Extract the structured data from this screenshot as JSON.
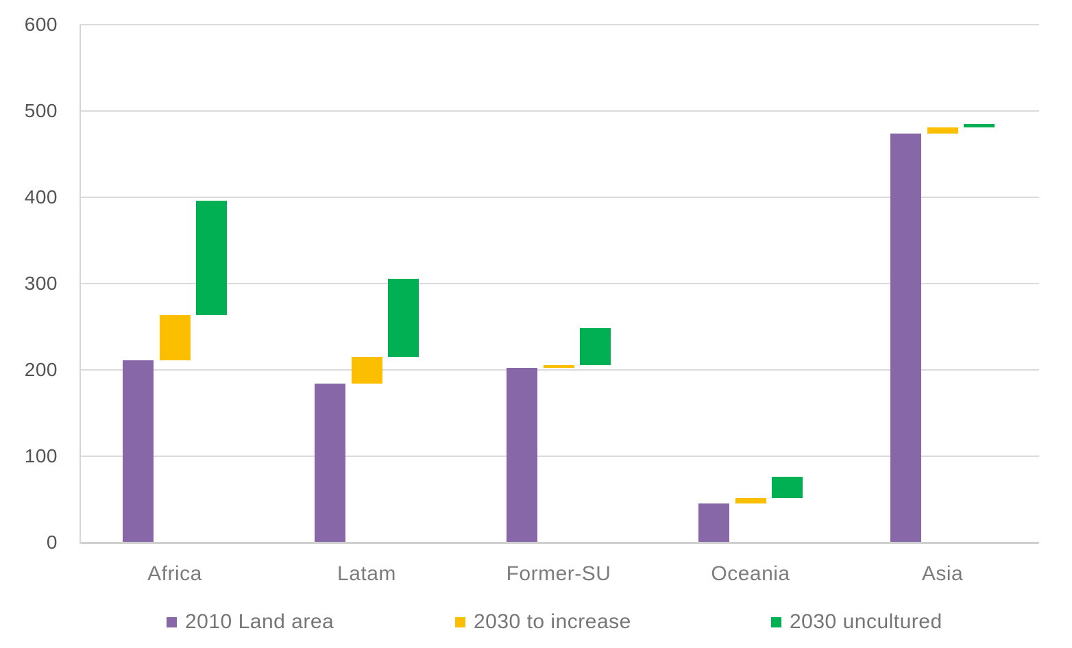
{
  "page": {
    "background_color": "#ffffff",
    "gridline_color": "#dbdbdb",
    "axis_line_color": "#d6d6d6",
    "zero_axis_color": "#cfcfcf",
    "tick_text_color": "#545454",
    "category_text_color": "#7c7c7c",
    "legend_text_color": "#767676"
  },
  "chart_data": {
    "type": "bar",
    "subtype": "floating-range-columns (waterfall-like, value ranges per segment)",
    "title": "",
    "xlabel": "",
    "ylabel": "",
    "categories": [
      "Africa",
      "Latam",
      "Former-SU",
      "Oceania",
      "Asia"
    ],
    "series": [
      {
        "name": "2010 Land area",
        "color": "#8767A8",
        "ranges": [
          [
            0,
            211
          ],
          [
            0,
            184
          ],
          [
            0,
            202
          ],
          [
            0,
            45
          ],
          [
            0,
            474
          ]
        ]
      },
      {
        "name": "2030 to increase",
        "color": "#FCBF00",
        "ranges": [
          [
            211,
            263
          ],
          [
            184,
            215
          ],
          [
            202,
            205
          ],
          [
            45,
            51
          ],
          [
            474,
            481
          ]
        ]
      },
      {
        "name": "2030 uncultured",
        "color": "#00B052",
        "ranges": [
          [
            263,
            396
          ],
          [
            215,
            305
          ],
          [
            205,
            248
          ],
          [
            51,
            76
          ],
          [
            481,
            485
          ]
        ]
      }
    ],
    "ylim": [
      0,
      600
    ],
    "yticks": [
      0,
      100,
      200,
      300,
      400,
      500,
      600
    ],
    "grid": true,
    "legend_position": "bottom"
  }
}
